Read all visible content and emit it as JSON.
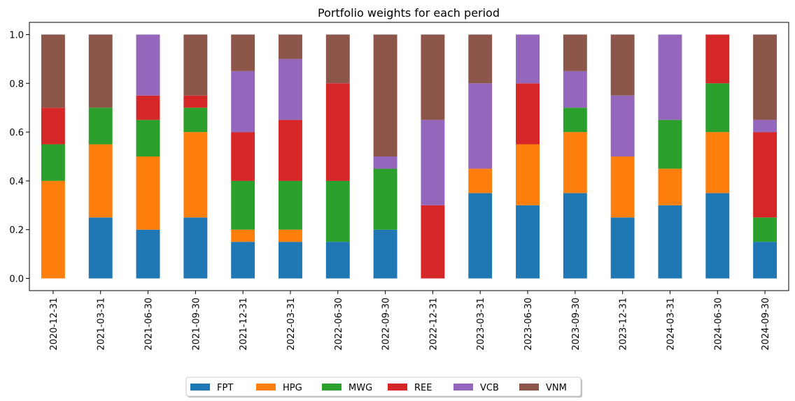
{
  "chart_data": {
    "type": "bar",
    "stacked": true,
    "title": "Portfolio weights for each period",
    "xlabel": "",
    "ylabel": "",
    "ylim": [
      0,
      1.0
    ],
    "yticks": [
      "0.0",
      "0.2",
      "0.4",
      "0.6",
      "0.8",
      "1.0"
    ],
    "grid": false,
    "legend_position": "bottom-center",
    "categories": [
      "2020-12-31",
      "2021-03-31",
      "2021-06-30",
      "2021-09-30",
      "2021-12-31",
      "2022-03-31",
      "2022-06-30",
      "2022-09-30",
      "2022-12-31",
      "2023-03-31",
      "2023-06-30",
      "2023-09-30",
      "2023-12-31",
      "2024-03-31",
      "2024-06-30",
      "2024-09-30"
    ],
    "series": [
      {
        "name": "FPT",
        "color": "#1f77b4",
        "values": [
          0.0,
          0.25,
          0.2,
          0.25,
          0.15,
          0.15,
          0.15,
          0.2,
          0.0,
          0.35,
          0.3,
          0.35,
          0.25,
          0.3,
          0.35,
          0.15
        ]
      },
      {
        "name": "HPG",
        "color": "#ff7f0e",
        "values": [
          0.4,
          0.3,
          0.3,
          0.35,
          0.05,
          0.05,
          0.0,
          0.0,
          0.0,
          0.1,
          0.25,
          0.25,
          0.25,
          0.15,
          0.25,
          0.0
        ]
      },
      {
        "name": "MWG",
        "color": "#2ca02c",
        "values": [
          0.15,
          0.15,
          0.15,
          0.1,
          0.2,
          0.2,
          0.25,
          0.25,
          0.0,
          0.0,
          0.0,
          0.1,
          0.0,
          0.2,
          0.2,
          0.1
        ]
      },
      {
        "name": "REE",
        "color": "#d62728",
        "values": [
          0.15,
          0.0,
          0.1,
          0.05,
          0.2,
          0.25,
          0.4,
          0.0,
          0.3,
          0.0,
          0.25,
          0.0,
          0.0,
          0.0,
          0.2,
          0.35
        ]
      },
      {
        "name": "VCB",
        "color": "#9467bd",
        "values": [
          0.0,
          0.0,
          0.25,
          0.0,
          0.25,
          0.25,
          0.0,
          0.05,
          0.35,
          0.35,
          0.2,
          0.15,
          0.25,
          0.35,
          0.0,
          0.05
        ]
      },
      {
        "name": "VNM",
        "color": "#8c564b",
        "values": [
          0.3,
          0.3,
          0.0,
          0.25,
          0.15,
          0.1,
          0.2,
          0.5,
          0.35,
          0.2,
          0.0,
          0.15,
          0.25,
          0.0,
          0.0,
          0.35
        ]
      }
    ]
  }
}
